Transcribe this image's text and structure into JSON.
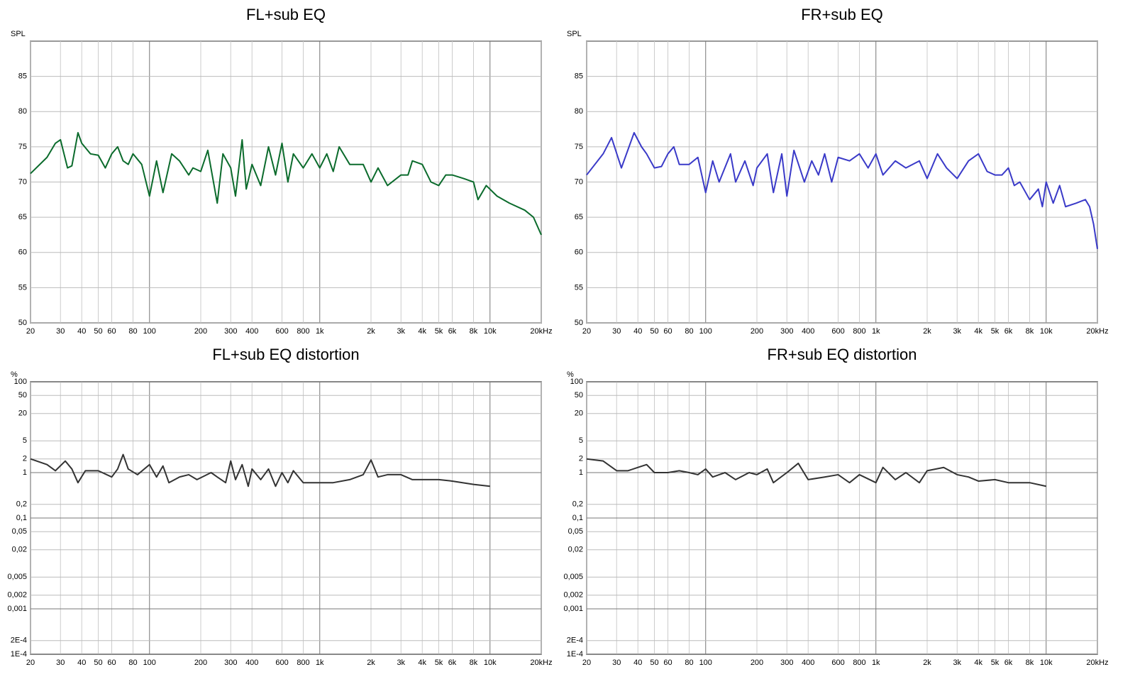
{
  "chart_data": [
    {
      "type": "line",
      "title": "FL+sub EQ",
      "ylabel": "SPL",
      "xscale": "log",
      "yscale": "linear",
      "grid": true,
      "xlim": [
        20,
        20000
      ],
      "ylim": [
        50,
        90
      ],
      "xticks": [
        20,
        30,
        40,
        50,
        60,
        80,
        100,
        200,
        300,
        400,
        600,
        800,
        {
          "value": 1000,
          "label": "1k"
        },
        {
          "value": 2000,
          "label": "2k"
        },
        {
          "value": 3000,
          "label": "3k"
        },
        {
          "value": 4000,
          "label": "4k"
        },
        {
          "value": 5000,
          "label": "5k"
        },
        {
          "value": 6000,
          "label": "6k"
        },
        {
          "value": 8000,
          "label": "8k"
        },
        {
          "value": 10000,
          "label": "10k"
        },
        {
          "value": 20000,
          "label": "20kHz"
        }
      ],
      "yticks": [
        50,
        55,
        60,
        65,
        70,
        75,
        80,
        85
      ],
      "x": [
        20,
        25,
        28,
        30,
        33,
        35,
        38,
        40,
        45,
        50,
        55,
        60,
        65,
        70,
        75,
        80,
        90,
        100,
        110,
        120,
        135,
        150,
        170,
        180,
        200,
        220,
        250,
        270,
        300,
        320,
        350,
        370,
        400,
        450,
        500,
        550,
        600,
        650,
        700,
        800,
        900,
        1000,
        1100,
        1200,
        1300,
        1500,
        1800,
        2000,
        2200,
        2500,
        3000,
        3300,
        3500,
        4000,
        4500,
        5000,
        5500,
        6000,
        7000,
        8000,
        8500,
        9500,
        11000,
        13000,
        16000,
        18000,
        20000
      ],
      "series": [
        {
          "color": "#0b6b2c",
          "values": [
            71.2,
            73.5,
            75.5,
            76,
            72,
            72.3,
            77,
            75.5,
            74,
            73.8,
            72,
            74,
            75,
            73,
            72.5,
            74,
            72.5,
            68,
            73,
            68.5,
            74,
            73,
            71,
            72,
            71.5,
            74.5,
            67,
            74,
            72,
            68,
            76,
            69,
            72.5,
            69.5,
            75,
            71,
            75.5,
            70,
            74,
            72,
            74,
            72,
            74,
            71.5,
            75,
            72.5,
            72.5,
            70,
            72,
            69.5,
            71,
            71,
            73,
            72.5,
            70,
            69.5,
            71,
            71,
            70.5,
            70,
            67.5,
            69.5,
            68,
            67,
            66,
            65,
            62.5
          ]
        }
      ]
    },
    {
      "type": "line",
      "title": "FR+sub EQ",
      "ylabel": "SPL",
      "xscale": "log",
      "yscale": "linear",
      "grid": true,
      "xlim": [
        20,
        20000
      ],
      "ylim": [
        50,
        90
      ],
      "xticks": [
        20,
        30,
        40,
        50,
        60,
        80,
        100,
        200,
        300,
        400,
        600,
        800,
        {
          "value": 1000,
          "label": "1k"
        },
        {
          "value": 2000,
          "label": "2k"
        },
        {
          "value": 3000,
          "label": "3k"
        },
        {
          "value": 4000,
          "label": "4k"
        },
        {
          "value": 5000,
          "label": "5k"
        },
        {
          "value": 6000,
          "label": "6k"
        },
        {
          "value": 8000,
          "label": "8k"
        },
        {
          "value": 10000,
          "label": "10k"
        },
        {
          "value": 20000,
          "label": "20kHz"
        }
      ],
      "yticks": [
        50,
        55,
        60,
        65,
        70,
        75,
        80,
        85
      ],
      "x": [
        20,
        25,
        28,
        32,
        38,
        42,
        45,
        50,
        55,
        60,
        65,
        70,
        80,
        90,
        100,
        110,
        120,
        140,
        150,
        170,
        190,
        200,
        230,
        250,
        280,
        300,
        330,
        380,
        420,
        460,
        500,
        550,
        600,
        700,
        800,
        900,
        1000,
        1100,
        1300,
        1500,
        1800,
        2000,
        2300,
        2600,
        3000,
        3500,
        4000,
        4500,
        5000,
        5500,
        6000,
        6500,
        7000,
        8000,
        9000,
        9500,
        10000,
        11000,
        12000,
        13000,
        15000,
        17000,
        18000,
        19000,
        20000
      ],
      "series": [
        {
          "color": "#3a3ac8",
          "values": [
            71,
            74,
            76.3,
            72,
            77,
            75,
            74,
            72,
            72.2,
            74,
            75,
            72.5,
            72.5,
            73.5,
            68.5,
            73,
            70,
            74,
            70,
            73,
            69.5,
            72,
            74,
            68.5,
            74,
            68,
            74.5,
            70,
            73,
            71,
            74,
            70,
            73.5,
            73,
            74,
            72,
            74,
            71,
            73,
            72,
            73,
            70.5,
            74,
            72,
            70.5,
            73,
            74,
            71.5,
            71,
            71,
            72,
            69.5,
            70,
            67.5,
            69,
            66.5,
            70,
            67,
            69.5,
            66.5,
            67,
            67.5,
            66.5,
            64,
            60.5
          ]
        }
      ]
    },
    {
      "type": "line",
      "title": "FL+sub EQ distortion",
      "ylabel": "%",
      "xscale": "log",
      "yscale": "log",
      "grid": true,
      "xlim": [
        20,
        20000
      ],
      "ylim": [
        0.0001,
        100
      ],
      "xticks": [
        20,
        30,
        40,
        50,
        60,
        80,
        100,
        200,
        300,
        400,
        600,
        800,
        {
          "value": 1000,
          "label": "1k"
        },
        {
          "value": 2000,
          "label": "2k"
        },
        {
          "value": 3000,
          "label": "3k"
        },
        {
          "value": 4000,
          "label": "4k"
        },
        {
          "value": 5000,
          "label": "5k"
        },
        {
          "value": 6000,
          "label": "6k"
        },
        {
          "value": 8000,
          "label": "8k"
        },
        {
          "value": 10000,
          "label": "10k"
        },
        {
          "value": 20000,
          "label": "20kHz"
        }
      ],
      "yticks": [
        {
          "value": 0.0001,
          "label": "1E-4"
        },
        {
          "value": 0.0002,
          "label": "2E-4"
        },
        {
          "value": 0.001,
          "label": "0,001"
        },
        {
          "value": 0.002,
          "label": "0,002"
        },
        {
          "value": 0.005,
          "label": "0,005"
        },
        {
          "value": 0.02,
          "label": "0,02"
        },
        {
          "value": 0.05,
          "label": "0,05"
        },
        {
          "value": 0.1,
          "label": "0,1"
        },
        {
          "value": 0.2,
          "label": "0,2"
        },
        1,
        2,
        5,
        20,
        50,
        100
      ],
      "x": [
        20,
        25,
        28,
        32,
        35,
        38,
        42,
        50,
        60,
        65,
        70,
        75,
        85,
        100,
        110,
        120,
        130,
        150,
        170,
        190,
        230,
        250,
        280,
        300,
        320,
        350,
        380,
        400,
        450,
        500,
        550,
        600,
        650,
        700,
        800,
        1000,
        1200,
        1500,
        1800,
        2000,
        2200,
        2500,
        3000,
        3500,
        4000,
        5000,
        6000,
        8000,
        10000
      ],
      "series": [
        {
          "color": "#333333",
          "values": [
            2,
            1.5,
            1.1,
            1.8,
            1.2,
            0.6,
            1.1,
            1.1,
            0.8,
            1.2,
            2.5,
            1.2,
            0.9,
            1.5,
            0.8,
            1.4,
            0.6,
            0.8,
            0.9,
            0.7,
            1.0,
            0.8,
            0.6,
            1.8,
            0.7,
            1.5,
            0.5,
            1.2,
            0.7,
            1.2,
            0.5,
            1.0,
            0.6,
            1.1,
            0.6,
            0.6,
            0.6,
            0.7,
            0.9,
            1.9,
            0.8,
            0.9,
            0.9,
            0.7,
            0.7,
            0.7,
            0.65,
            0.55,
            0.5
          ]
        }
      ]
    },
    {
      "type": "line",
      "title": "FR+sub EQ distortion",
      "ylabel": "%",
      "xscale": "log",
      "yscale": "log",
      "grid": true,
      "xlim": [
        20,
        20000
      ],
      "ylim": [
        0.0001,
        100
      ],
      "xticks": [
        20,
        30,
        40,
        50,
        60,
        80,
        100,
        200,
        300,
        400,
        600,
        800,
        {
          "value": 1000,
          "label": "1k"
        },
        {
          "value": 2000,
          "label": "2k"
        },
        {
          "value": 3000,
          "label": "3k"
        },
        {
          "value": 4000,
          "label": "4k"
        },
        {
          "value": 5000,
          "label": "5k"
        },
        {
          "value": 6000,
          "label": "6k"
        },
        {
          "value": 8000,
          "label": "8k"
        },
        {
          "value": 10000,
          "label": "10k"
        },
        {
          "value": 20000,
          "label": "20kHz"
        }
      ],
      "yticks": [
        {
          "value": 0.0001,
          "label": "1E-4"
        },
        {
          "value": 0.0002,
          "label": "2E-4"
        },
        {
          "value": 0.001,
          "label": "0,001"
        },
        {
          "value": 0.002,
          "label": "0,002"
        },
        {
          "value": 0.005,
          "label": "0,005"
        },
        {
          "value": 0.02,
          "label": "0,02"
        },
        {
          "value": 0.05,
          "label": "0,05"
        },
        {
          "value": 0.1,
          "label": "0,1"
        },
        {
          "value": 0.2,
          "label": "0,2"
        },
        1,
        2,
        5,
        20,
        50,
        100
      ],
      "x": [
        20,
        25,
        30,
        35,
        40,
        45,
        50,
        60,
        70,
        80,
        90,
        100,
        110,
        130,
        150,
        180,
        200,
        230,
        250,
        300,
        350,
        400,
        500,
        600,
        700,
        800,
        1000,
        1100,
        1300,
        1500,
        1800,
        2000,
        2500,
        3000,
        3500,
        4000,
        5000,
        6000,
        8000,
        10000
      ],
      "series": [
        {
          "color": "#333333",
          "values": [
            2,
            1.8,
            1.1,
            1.1,
            1.3,
            1.5,
            1.0,
            1.0,
            1.1,
            1.0,
            0.9,
            1.2,
            0.8,
            1.0,
            0.7,
            1.0,
            0.9,
            1.2,
            0.6,
            1.0,
            1.6,
            0.7,
            0.8,
            0.9,
            0.6,
            0.9,
            0.6,
            1.3,
            0.7,
            1.0,
            0.6,
            1.1,
            1.3,
            0.9,
            0.8,
            0.65,
            0.7,
            0.6,
            0.6,
            0.5
          ]
        }
      ]
    }
  ]
}
